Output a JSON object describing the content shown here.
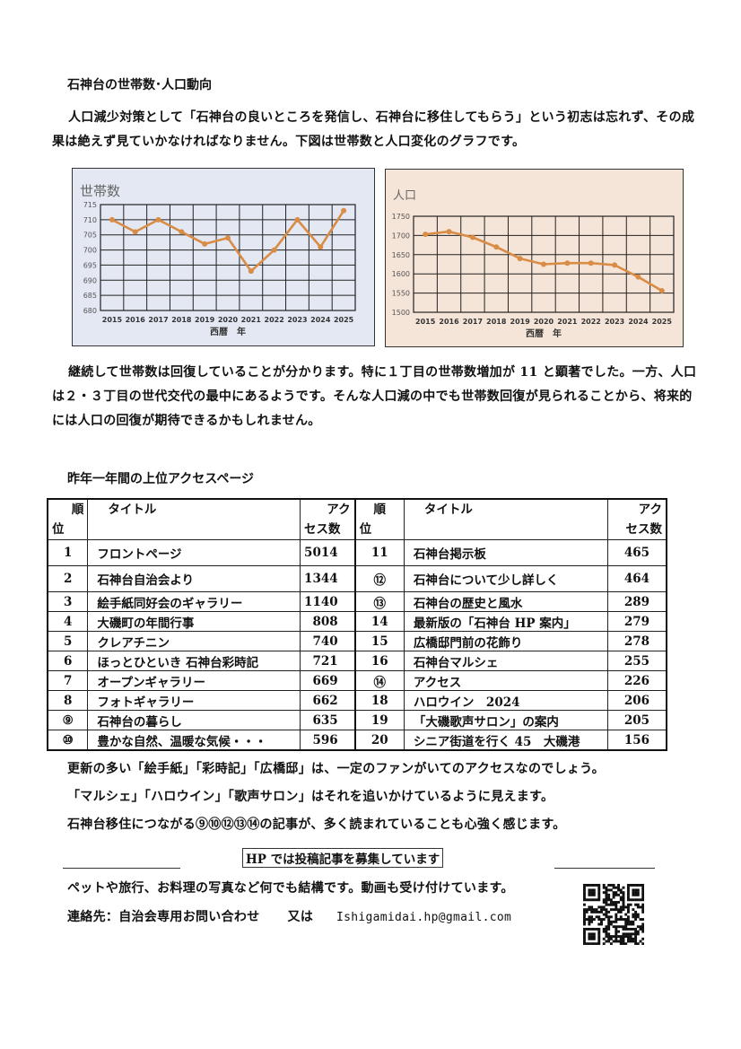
{
  "section1": {
    "heading": "石神台の世帯数･人口動向",
    "intro": "人口減少対策として「石神台の良いところを発信し、石神台に移住してもらう」という初志は忘れず、その成果は絶えず見ていかなければなりません。下図は世帯数と人口変化のグラフです。",
    "conclusion": "継続して世帯数は回復していることが分かります。特に１丁目の世帯数増加が 11 と顕著でした。一方、人口は２・３丁目の世代交代の最中にあるようです。そんな人口減の中でも世帯数回復が見られることから、将来的には人口の回復が期待できるかもしれません。"
  },
  "chart_data": [
    {
      "type": "line",
      "title": "世帯数",
      "xlabel": "西暦　年",
      "ylabel": "",
      "categories": [
        "2015",
        "2016",
        "2017",
        "2018",
        "2019",
        "2020",
        "2021",
        "2022",
        "2023",
        "2024",
        "2025"
      ],
      "values": [
        710,
        706,
        710,
        706,
        702,
        704,
        693,
        700,
        710,
        701,
        713
      ],
      "ylim": [
        680,
        715
      ],
      "yticks": [
        680,
        685,
        690,
        695,
        700,
        705,
        710,
        715
      ],
      "grid": true,
      "background": "#e3e8f3",
      "line_color": "#d98c45"
    },
    {
      "type": "line",
      "title": "人口",
      "xlabel": "西暦　年",
      "ylabel": "",
      "categories": [
        "2015",
        "2016",
        "2017",
        "2018",
        "2019",
        "2020",
        "2021",
        "2022",
        "2023",
        "2024",
        "2025"
      ],
      "values": [
        1703,
        1710,
        1695,
        1670,
        1640,
        1625,
        1628,
        1628,
        1623,
        1592,
        1556
      ],
      "ylim": [
        1500,
        1750
      ],
      "yticks": [
        1500,
        1550,
        1600,
        1650,
        1700,
        1750
      ],
      "grid": true,
      "background": "#f5e4d8",
      "line_color": "#d98c45"
    }
  ],
  "section2": {
    "heading": "昨年一年間の上位アクセスページ",
    "headers": {
      "rank_1": "順",
      "rank_2": "位",
      "title": "タイトル",
      "count_1": "アク",
      "count_2": "セス数"
    },
    "rows": [
      {
        "rank": "1",
        "title": "フロントページ",
        "count": "5014"
      },
      {
        "rank": "2",
        "title": "石神台自治会より",
        "count": "1344"
      },
      {
        "rank": "3",
        "title": "絵手紙同好会のギャラリー",
        "count": "1140"
      },
      {
        "rank": "4",
        "title": "大磯町の年間行事",
        "count": "808"
      },
      {
        "rank": "5",
        "title": "クレアチニン",
        "count": "740"
      },
      {
        "rank": "6",
        "title": "ほっとひといき 石神台彩時記",
        "count": "721"
      },
      {
        "rank": "7",
        "title": "オープンギャラリー",
        "count": "669"
      },
      {
        "rank": "8",
        "title": "フォトギャラリー",
        "count": "662"
      },
      {
        "rank": "⑨",
        "title": "石神台の暮らし",
        "count": "635"
      },
      {
        "rank": "⑩",
        "title": "豊かな自然、温暖な気候・・・",
        "count": "596"
      },
      {
        "rank": "11",
        "title": "石神台掲示板",
        "count": "465"
      },
      {
        "rank": "⑫",
        "title": "石神台について少し詳しく",
        "count": "464"
      },
      {
        "rank": "⑬",
        "title": "石神台の歴史と風水",
        "count": "289"
      },
      {
        "rank": "14",
        "title": "最新版の「石神台 HP 案内」",
        "count": "279"
      },
      {
        "rank": "15",
        "title": "広橋邸門前の花飾り",
        "count": "278"
      },
      {
        "rank": "16",
        "title": "石神台マルシェ",
        "count": "255"
      },
      {
        "rank": "⑭",
        "title": "アクセス",
        "count": "226"
      },
      {
        "rank": "18",
        "title": "ハロウイン　2024",
        "count": "206"
      },
      {
        "rank": "19",
        "title": "「大磯歌声サロン」の案内",
        "count": "205"
      },
      {
        "rank": "20",
        "title": "シニア街道を行く 45　大磯港",
        "count": "156"
      }
    ],
    "notes": [
      "更新の多い「絵手紙」「彩時記」「広橋邸」は、一定のファンがいてのアクセスなのでしょう。",
      "「マルシェ」「ハロウイン」「歌声サロン」はそれを追いかけているように見えます。",
      "石神台移住につながる⑨⑩⑫⑬⑭の記事が、多く読まれていることも心強く感じます。"
    ]
  },
  "footer": {
    "notice": "HP では投稿記事を募集しています",
    "line1": "ペットや旅行、お料理の写真など何でも結構です。動画も受け付けています。",
    "contact_label": "連絡先：自治会専用お問い合わせ",
    "or": "又は",
    "email": "Ishigamidai.hp@gmail.com",
    "qr_icon": "qr-code"
  }
}
